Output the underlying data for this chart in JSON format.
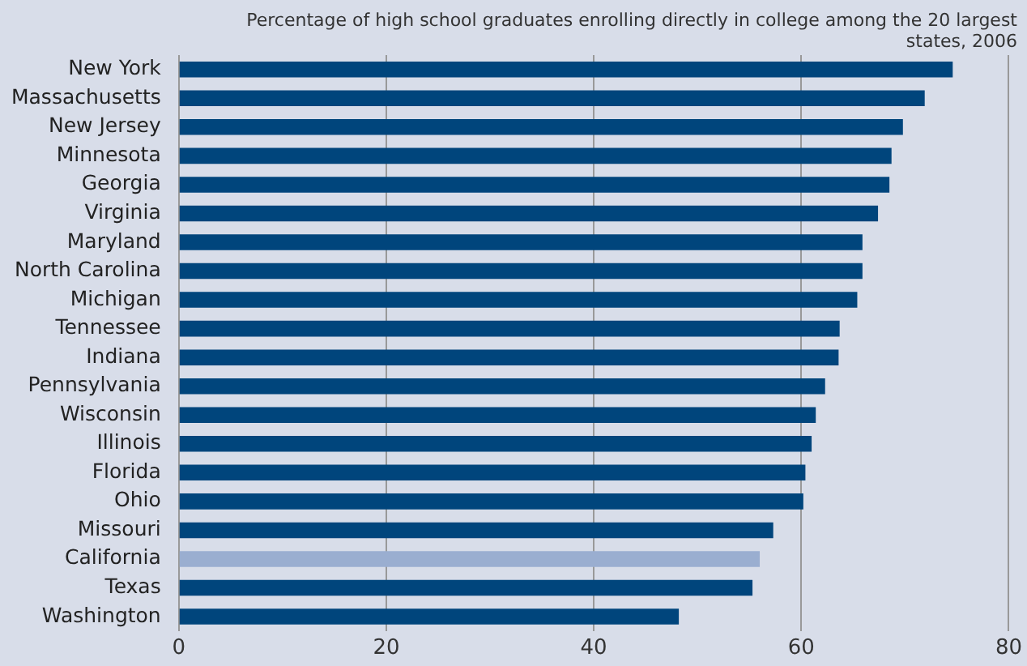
{
  "chart_data": {
    "type": "bar",
    "orientation": "horizontal",
    "title": "Percentage of high school graduates enrolling directly in college among the 20 largest states, 2006",
    "categories": [
      "New York",
      "Massachusetts",
      "New Jersey",
      "Minnesota",
      "Georgia",
      "Virginia",
      "Maryland",
      "North Carolina",
      "Michigan",
      "Tennessee",
      "Indiana",
      "Pennsylvania",
      "Wisconsin",
      "Illinois",
      "Florida",
      "Ohio",
      "Missouri",
      "California",
      "Texas",
      "Washington"
    ],
    "values": [
      74.6,
      71.9,
      69.8,
      68.7,
      68.5,
      67.4,
      65.9,
      65.9,
      65.4,
      63.7,
      63.6,
      62.3,
      61.4,
      61.0,
      60.4,
      60.2,
      57.3,
      56.0,
      55.3,
      48.2
    ],
    "colors": [
      "#00457c",
      "#00457c",
      "#00457c",
      "#00457c",
      "#00457c",
      "#00457c",
      "#00457c",
      "#00457c",
      "#00457c",
      "#00457c",
      "#00457c",
      "#00457c",
      "#00457c",
      "#00457c",
      "#00457c",
      "#00457c",
      "#00457c",
      "#9aaed0",
      "#00457c",
      "#00457c"
    ],
    "xlim": [
      0,
      80
    ],
    "xticks": [
      0,
      20,
      40,
      60,
      80
    ],
    "grid": "x"
  }
}
